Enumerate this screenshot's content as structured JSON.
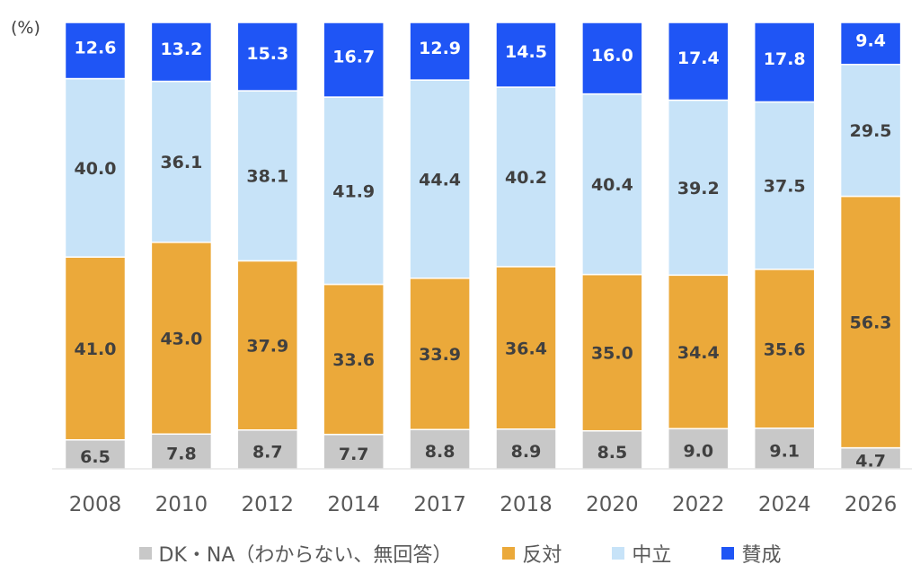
{
  "unit_label": "(%)",
  "colors": {
    "DK・NA": "#c8c8c8",
    "opposed": "#eba93a",
    "neutral": "#c7e3f8",
    "favor": "#1f55f5"
  },
  "legend": [
    {
      "key": "dkna",
      "label": "DK・NA（わからない、無回答）",
      "color": "#c8c8c8"
    },
    {
      "key": "opposed",
      "label": "反対",
      "color": "#eba93a"
    },
    {
      "key": "neutral",
      "label": "中立",
      "color": "#c7e3f8"
    },
    {
      "key": "favor",
      "label": "賛成",
      "color": "#1f55f5"
    }
  ],
  "chart_data": {
    "type": "bar",
    "stacked": "100%",
    "categories": [
      "2008",
      "2010",
      "2012",
      "2014",
      "2017",
      "2018",
      "2020",
      "2022",
      "2024",
      "2026"
    ],
    "series": [
      {
        "name": "DK・NA（わからない、無回答）",
        "values": [
          6.5,
          7.8,
          8.7,
          7.7,
          8.8,
          8.9,
          8.5,
          9.0,
          9.1,
          4.7
        ]
      },
      {
        "name": "反対",
        "values": [
          41.0,
          43.0,
          37.9,
          33.6,
          33.9,
          36.4,
          35.0,
          34.4,
          35.6,
          56.3
        ]
      },
      {
        "name": "中立",
        "values": [
          40.0,
          36.1,
          38.1,
          41.9,
          44.4,
          40.2,
          40.4,
          39.2,
          37.5,
          29.5
        ]
      },
      {
        "name": "賛成",
        "values": [
          12.6,
          13.2,
          15.3,
          16.7,
          12.9,
          14.5,
          16.0,
          17.4,
          17.8,
          9.4
        ]
      }
    ],
    "ylabel": "(%)",
    "legend_position": "bottom",
    "grid": false
  }
}
